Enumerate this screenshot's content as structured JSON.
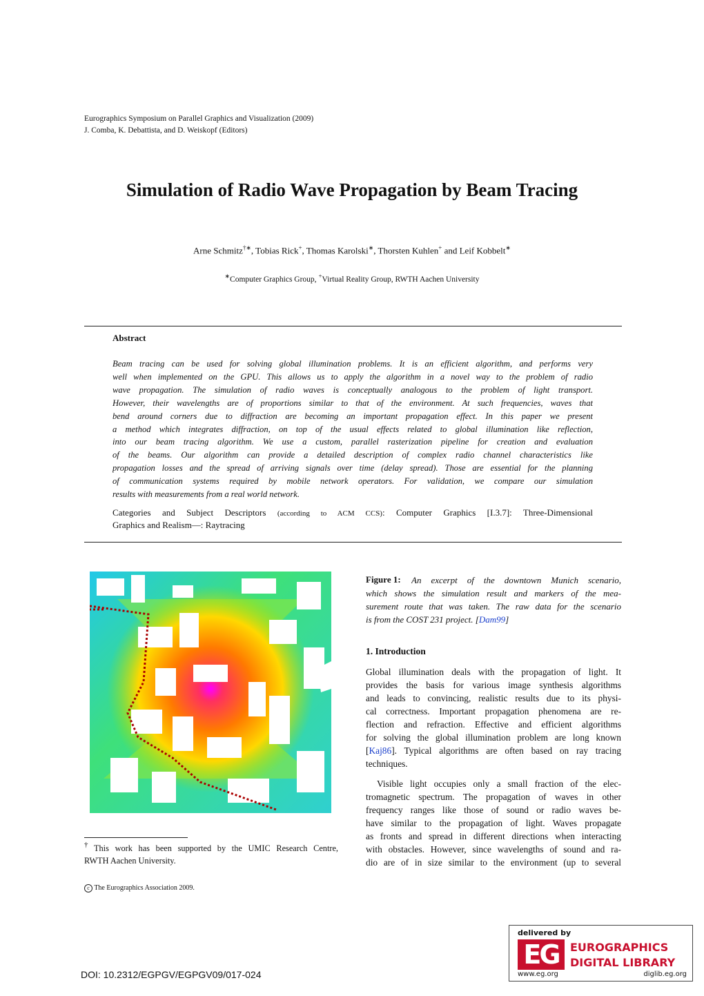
{
  "header": {
    "lines": [
      "Eurographics Symposium on Parallel Graphics and Visualization (2009)",
      "J. Comba, K. Debattista, and D. Weiskopf (Editors)"
    ]
  },
  "title": "Simulation of Radio Wave Propagation by Beam Tracing",
  "authors": [
    {
      "name": "Arne Schmitz",
      "sup": "†∗"
    },
    {
      "name": ", Tobias Rick",
      "sup": "+"
    },
    {
      "name": ", Thomas Karolski",
      "sup": "∗"
    },
    {
      "name": ", Thorsten Kuhlen",
      "sup": "+"
    },
    {
      "name": " and Leif Kobbelt",
      "sup": "∗"
    }
  ],
  "affiliations": [
    {
      "sup": "∗",
      "text": "Computer Graphics Group, "
    },
    {
      "sup": "+",
      "text": "Virtual Reality Group, RWTH Aachen University"
    }
  ],
  "abstract": {
    "heading": "Abstract",
    "lines": [
      "Beam tracing can be used for solving global illumination problems. It is an efficient algorithm, and performs very",
      "well when implemented on the GPU. This allows us to apply the algorithm in a novel way to the problem of radio",
      "wave propagation. The simulation of radio waves is conceptually analogous to the problem of light transport.",
      "However, their wavelengths are of proportions similar to that of the environment. At such frequencies, waves that",
      "bend around corners due to diffraction are becoming an important propagation effect. In this paper we present",
      "a method which integrates diffraction, on top of the usual effects related to global illumination like reflection,",
      "into our beam tracing algorithm. We use a custom, parallel rasterization pipeline for creation and evaluation",
      "of the beams. Our algorithm can provide a detailed description of complex radio channel characteristics like",
      "propagation losses and the spread of arriving signals over time (delay spread). Those are essential for the planning",
      "of communication systems required by mobile network operators. For validation, we compare our simulation",
      "results with measurements from a real world network."
    ],
    "categories": {
      "label": "Categories and Subject Descriptors",
      "note": "(according to ACM CCS)",
      "text": ": Computer Graphics [I.3.7]: Three-Dimensional",
      "line2": "Graphics and Realism—: Raytracing"
    }
  },
  "figure": {
    "label": "Figure 1:",
    "lines": [
      {
        "before": "An excerpt of the downtown Munich scenario,"
      },
      {
        "before": "which shows the simulation result and markers of the mea-"
      },
      {
        "before": "surement route that was taken. The raw data for the scenario"
      },
      {
        "before": "is from the COST 231 project. [",
        "cite": "Dam99",
        "after": "]"
      }
    ]
  },
  "section": {
    "heading": "1. Introduction",
    "paragraphs": [
      [
        {
          "before": "Global illumination deals with the propagation of light. It"
        },
        {
          "before": "provides the basis for various image synthesis algorithms"
        },
        {
          "before": "and leads to convincing, realistic results due to its physi-"
        },
        {
          "before": "cal correctness. Important propagation phenomena are re-"
        },
        {
          "before": "flection and refraction. Effective and efficient algorithms"
        },
        {
          "before": "for solving the global illumination problem are long known"
        },
        {
          "before": "[",
          "cite": "Kaj86",
          "after": "]. Typical algorithms are often based on ray tracing"
        },
        {
          "before": "techniques."
        }
      ],
      [
        {
          "before": "Visible light occupies only a small fraction of the elec-"
        },
        {
          "before": "tromagnetic spectrum. The propagation of waves in other"
        },
        {
          "before": "frequency ranges like those of sound or radio waves be-"
        },
        {
          "before": "have similar to the propagation of light. Waves propagate"
        },
        {
          "before": "as fronts and spread in different directions when interacting"
        },
        {
          "before": "with obstacles. However, since wavelengths of sound and ra-"
        },
        {
          "before": "dio are of in size similar to the environment (up to several"
        }
      ]
    ]
  },
  "footnote": {
    "mark": "†",
    "lines": [
      "This work has been supported by the UMIC Research Centre,",
      "RWTH Aachen University."
    ]
  },
  "copyright": {
    "symbol": "c",
    "text": "The Eurographics Association 2009."
  },
  "doi": "DOI: 10.2312/EGPGV/EGPGV09/017-024",
  "logo": {
    "delivered": "delivered by",
    "mark": "EG",
    "line1": "EUROGRAPHICS",
    "line2": "DIGITAL LIBRARY",
    "url1": "www.eg.org",
    "url2": "diglib.eg.org"
  }
}
